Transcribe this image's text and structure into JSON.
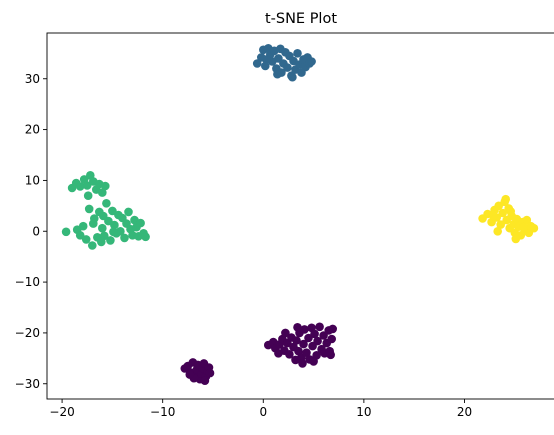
{
  "chart_data": {
    "type": "scatter",
    "title": "t-SNE Plot",
    "xlabel": "",
    "ylabel": "",
    "xlim": [
      -21.5,
      29.0
    ],
    "ylim": [
      -33.0,
      39.0
    ],
    "xticks": [
      -20,
      -10,
      0,
      10,
      20
    ],
    "yticks": [
      -30,
      -20,
      -10,
      0,
      10,
      20,
      30
    ],
    "xtick_labels": [
      "−20",
      "−10",
      "0",
      "10",
      "20"
    ],
    "ytick_labels": [
      "−30",
      "−20",
      "−10",
      "0",
      "10",
      "20",
      "30"
    ],
    "grid": false,
    "legend": "none",
    "colors": {
      "purple": "#440154",
      "blue": "#31688e",
      "green": "#35b779",
      "yellow": "#fde725"
    },
    "clusters": [
      {
        "color": "purple",
        "points": [
          [
            -7.8,
            -27.0
          ],
          [
            -7.5,
            -26.5
          ],
          [
            -7.2,
            -27.8
          ],
          [
            -7.0,
            -25.8
          ],
          [
            -6.8,
            -28.6
          ],
          [
            -6.6,
            -27.2
          ],
          [
            -6.5,
            -26.3
          ],
          [
            -6.3,
            -29.1
          ],
          [
            -6.1,
            -28.0
          ],
          [
            -6.0,
            -27.0
          ],
          [
            -5.9,
            -26.0
          ],
          [
            -5.7,
            -28.6
          ],
          [
            -5.5,
            -27.6
          ],
          [
            -5.4,
            -26.8
          ],
          [
            -5.8,
            -29.4
          ],
          [
            -6.9,
            -28.9
          ],
          [
            -7.3,
            -28.2
          ],
          [
            -5.3,
            -27.9
          ],
          [
            0.5,
            -22.4
          ],
          [
            1.0,
            -21.8
          ],
          [
            1.2,
            -23.0
          ],
          [
            1.6,
            -22.3
          ],
          [
            1.9,
            -21.2
          ],
          [
            2.1,
            -23.5
          ],
          [
            2.4,
            -22.0
          ],
          [
            2.6,
            -24.2
          ],
          [
            2.8,
            -20.9
          ],
          [
            3.0,
            -22.8
          ],
          [
            3.2,
            -25.3
          ],
          [
            3.3,
            -21.5
          ],
          [
            3.5,
            -23.6
          ],
          [
            3.6,
            -20.0
          ],
          [
            3.8,
            -24.8
          ],
          [
            4.0,
            -22.2
          ],
          [
            4.1,
            -19.3
          ],
          [
            4.3,
            -23.9
          ],
          [
            4.5,
            -21.0
          ],
          [
            4.6,
            -25.2
          ],
          [
            4.8,
            -19.0
          ],
          [
            4.9,
            -22.6
          ],
          [
            5.1,
            -20.2
          ],
          [
            5.3,
            -24.4
          ],
          [
            5.4,
            -21.6
          ],
          [
            5.6,
            -18.8
          ],
          [
            5.8,
            -23.2
          ],
          [
            6.0,
            -20.5
          ],
          [
            6.1,
            -24.0
          ],
          [
            6.3,
            -22.0
          ],
          [
            6.5,
            -19.5
          ],
          [
            6.6,
            -23.6
          ],
          [
            6.8,
            -21.2
          ],
          [
            6.9,
            -19.2
          ],
          [
            2.2,
            -20.0
          ],
          [
            3.9,
            -26.0
          ],
          [
            5.0,
            -25.6
          ],
          [
            6.7,
            -24.3
          ],
          [
            1.5,
            -24.0
          ],
          [
            3.4,
            -18.9
          ]
        ]
      },
      {
        "color": "blue",
        "points": [
          [
            -0.6,
            33.0
          ],
          [
            -0.2,
            34.2
          ],
          [
            0.0,
            35.7
          ],
          [
            0.2,
            32.5
          ],
          [
            0.5,
            36.0
          ],
          [
            0.7,
            34.8
          ],
          [
            0.9,
            33.4
          ],
          [
            1.1,
            35.5
          ],
          [
            1.3,
            32.0
          ],
          [
            1.5,
            34.0
          ],
          [
            1.7,
            35.9
          ],
          [
            1.8,
            31.2
          ],
          [
            2.0,
            33.0
          ],
          [
            2.2,
            35.2
          ],
          [
            2.4,
            32.2
          ],
          [
            2.6,
            34.5
          ],
          [
            2.8,
            30.6
          ],
          [
            3.0,
            33.5
          ],
          [
            3.2,
            31.8
          ],
          [
            3.4,
            35.0
          ],
          [
            3.6,
            32.8
          ],
          [
            3.8,
            31.2
          ],
          [
            4.0,
            33.8
          ],
          [
            4.2,
            32.3
          ],
          [
            4.4,
            34.2
          ],
          [
            4.6,
            33.0
          ],
          [
            4.8,
            33.4
          ],
          [
            2.9,
            30.3
          ],
          [
            1.4,
            30.9
          ],
          [
            0.3,
            33.8
          ]
        ]
      },
      {
        "color": "green",
        "points": [
          [
            -19.6,
            -0.1
          ],
          [
            -19.0,
            8.5
          ],
          [
            -18.6,
            9.5
          ],
          [
            -18.2,
            8.8
          ],
          [
            -17.8,
            10.2
          ],
          [
            -17.5,
            9.0
          ],
          [
            -17.2,
            11.0
          ],
          [
            -16.9,
            9.8
          ],
          [
            -16.6,
            8.2
          ],
          [
            -16.3,
            9.3
          ],
          [
            -16.0,
            7.6
          ],
          [
            -15.7,
            8.9
          ],
          [
            -17.4,
            7.0
          ],
          [
            -18.5,
            0.3
          ],
          [
            -18.2,
            -0.8
          ],
          [
            -17.9,
            1.0
          ],
          [
            -17.6,
            -1.6
          ],
          [
            -17.3,
            4.4
          ],
          [
            -17.0,
            -2.8
          ],
          [
            -16.8,
            2.5
          ],
          [
            -16.5,
            -1.2
          ],
          [
            -16.3,
            3.8
          ],
          [
            -16.0,
            0.6
          ],
          [
            -15.8,
            -0.9
          ],
          [
            -15.6,
            5.5
          ],
          [
            -15.4,
            2.0
          ],
          [
            -15.2,
            -1.8
          ],
          [
            -15.0,
            4.0
          ],
          [
            -14.8,
            1.2
          ],
          [
            -14.6,
            -0.4
          ],
          [
            -14.4,
            3.2
          ],
          [
            -14.2,
            0.0
          ],
          [
            -14.0,
            2.6
          ],
          [
            -13.8,
            -1.3
          ],
          [
            -13.6,
            1.5
          ],
          [
            -13.4,
            3.8
          ],
          [
            -13.2,
            0.4
          ],
          [
            -13.0,
            -0.8
          ],
          [
            -12.8,
            2.2
          ],
          [
            -12.6,
            0.8
          ],
          [
            -12.4,
            -1.0
          ],
          [
            -12.2,
            1.6
          ],
          [
            -11.9,
            -0.4
          ],
          [
            -11.7,
            -1.1
          ],
          [
            -16.9,
            1.5
          ],
          [
            -15.9,
            3.0
          ],
          [
            -14.9,
            -0.1
          ],
          [
            -16.1,
            -2.1
          ]
        ]
      },
      {
        "color": "yellow",
        "points": [
          [
            21.8,
            2.5
          ],
          [
            22.3,
            3.4
          ],
          [
            22.7,
            1.8
          ],
          [
            23.0,
            4.2
          ],
          [
            23.2,
            2.7
          ],
          [
            23.4,
            5.0
          ],
          [
            23.6,
            1.3
          ],
          [
            23.8,
            3.6
          ],
          [
            24.0,
            5.8
          ],
          [
            24.2,
            2.2
          ],
          [
            24.4,
            4.5
          ],
          [
            24.5,
            0.6
          ],
          [
            24.7,
            3.0
          ],
          [
            24.9,
            1.4
          ],
          [
            25.0,
            -0.3
          ],
          [
            25.2,
            2.4
          ],
          [
            25.4,
            0.9
          ],
          [
            25.6,
            -0.8
          ],
          [
            25.8,
            1.8
          ],
          [
            26.0,
            0.2
          ],
          [
            26.2,
            2.2
          ],
          [
            26.4,
            -0.3
          ],
          [
            26.6,
            1.0
          ],
          [
            24.1,
            6.3
          ],
          [
            25.1,
            -1.5
          ],
          [
            23.3,
            0.0
          ],
          [
            26.9,
            0.6
          ],
          [
            24.6,
            3.9
          ],
          [
            22.9,
            3.0
          ],
          [
            25.9,
            0.8
          ]
        ]
      }
    ]
  }
}
